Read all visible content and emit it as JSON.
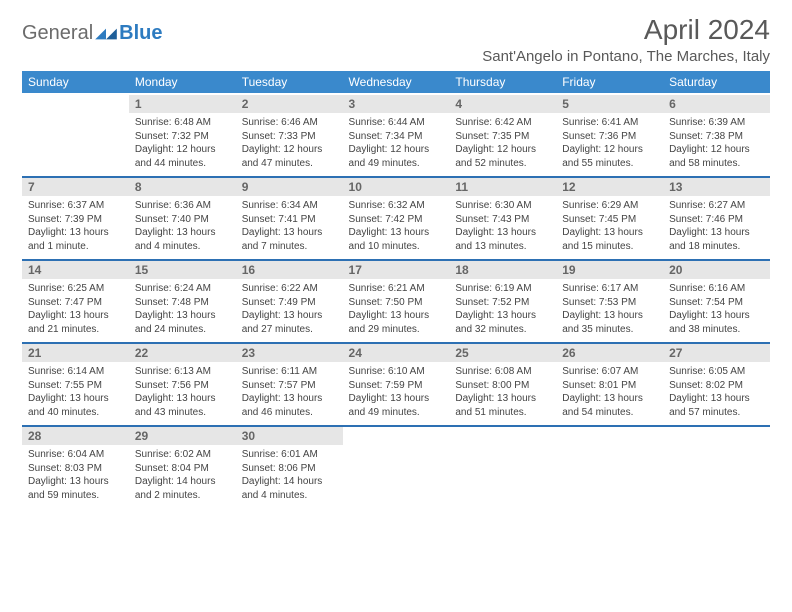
{
  "logo": {
    "general": "General",
    "blue": "Blue"
  },
  "header": {
    "title": "April 2024",
    "location": "Sant'Angelo in Pontano, The Marches, Italy"
  },
  "columns": [
    "Sunday",
    "Monday",
    "Tuesday",
    "Wednesday",
    "Thursday",
    "Friday",
    "Saturday"
  ],
  "weeks": [
    [
      {
        "n": "",
        "sunrise": "",
        "sunset": "",
        "day1": "",
        "day2": ""
      },
      {
        "n": "1",
        "sunrise": "Sunrise: 6:48 AM",
        "sunset": "Sunset: 7:32 PM",
        "day1": "Daylight: 12 hours",
        "day2": "and 44 minutes."
      },
      {
        "n": "2",
        "sunrise": "Sunrise: 6:46 AM",
        "sunset": "Sunset: 7:33 PM",
        "day1": "Daylight: 12 hours",
        "day2": "and 47 minutes."
      },
      {
        "n": "3",
        "sunrise": "Sunrise: 6:44 AM",
        "sunset": "Sunset: 7:34 PM",
        "day1": "Daylight: 12 hours",
        "day2": "and 49 minutes."
      },
      {
        "n": "4",
        "sunrise": "Sunrise: 6:42 AM",
        "sunset": "Sunset: 7:35 PM",
        "day1": "Daylight: 12 hours",
        "day2": "and 52 minutes."
      },
      {
        "n": "5",
        "sunrise": "Sunrise: 6:41 AM",
        "sunset": "Sunset: 7:36 PM",
        "day1": "Daylight: 12 hours",
        "day2": "and 55 minutes."
      },
      {
        "n": "6",
        "sunrise": "Sunrise: 6:39 AM",
        "sunset": "Sunset: 7:38 PM",
        "day1": "Daylight: 12 hours",
        "day2": "and 58 minutes."
      }
    ],
    [
      {
        "n": "7",
        "sunrise": "Sunrise: 6:37 AM",
        "sunset": "Sunset: 7:39 PM",
        "day1": "Daylight: 13 hours",
        "day2": "and 1 minute."
      },
      {
        "n": "8",
        "sunrise": "Sunrise: 6:36 AM",
        "sunset": "Sunset: 7:40 PM",
        "day1": "Daylight: 13 hours",
        "day2": "and 4 minutes."
      },
      {
        "n": "9",
        "sunrise": "Sunrise: 6:34 AM",
        "sunset": "Sunset: 7:41 PM",
        "day1": "Daylight: 13 hours",
        "day2": "and 7 minutes."
      },
      {
        "n": "10",
        "sunrise": "Sunrise: 6:32 AM",
        "sunset": "Sunset: 7:42 PM",
        "day1": "Daylight: 13 hours",
        "day2": "and 10 minutes."
      },
      {
        "n": "11",
        "sunrise": "Sunrise: 6:30 AM",
        "sunset": "Sunset: 7:43 PM",
        "day1": "Daylight: 13 hours",
        "day2": "and 13 minutes."
      },
      {
        "n": "12",
        "sunrise": "Sunrise: 6:29 AM",
        "sunset": "Sunset: 7:45 PM",
        "day1": "Daylight: 13 hours",
        "day2": "and 15 minutes."
      },
      {
        "n": "13",
        "sunrise": "Sunrise: 6:27 AM",
        "sunset": "Sunset: 7:46 PM",
        "day1": "Daylight: 13 hours",
        "day2": "and 18 minutes."
      }
    ],
    [
      {
        "n": "14",
        "sunrise": "Sunrise: 6:25 AM",
        "sunset": "Sunset: 7:47 PM",
        "day1": "Daylight: 13 hours",
        "day2": "and 21 minutes."
      },
      {
        "n": "15",
        "sunrise": "Sunrise: 6:24 AM",
        "sunset": "Sunset: 7:48 PM",
        "day1": "Daylight: 13 hours",
        "day2": "and 24 minutes."
      },
      {
        "n": "16",
        "sunrise": "Sunrise: 6:22 AM",
        "sunset": "Sunset: 7:49 PM",
        "day1": "Daylight: 13 hours",
        "day2": "and 27 minutes."
      },
      {
        "n": "17",
        "sunrise": "Sunrise: 6:21 AM",
        "sunset": "Sunset: 7:50 PM",
        "day1": "Daylight: 13 hours",
        "day2": "and 29 minutes."
      },
      {
        "n": "18",
        "sunrise": "Sunrise: 6:19 AM",
        "sunset": "Sunset: 7:52 PM",
        "day1": "Daylight: 13 hours",
        "day2": "and 32 minutes."
      },
      {
        "n": "19",
        "sunrise": "Sunrise: 6:17 AM",
        "sunset": "Sunset: 7:53 PM",
        "day1": "Daylight: 13 hours",
        "day2": "and 35 minutes."
      },
      {
        "n": "20",
        "sunrise": "Sunrise: 6:16 AM",
        "sunset": "Sunset: 7:54 PM",
        "day1": "Daylight: 13 hours",
        "day2": "and 38 minutes."
      }
    ],
    [
      {
        "n": "21",
        "sunrise": "Sunrise: 6:14 AM",
        "sunset": "Sunset: 7:55 PM",
        "day1": "Daylight: 13 hours",
        "day2": "and 40 minutes."
      },
      {
        "n": "22",
        "sunrise": "Sunrise: 6:13 AM",
        "sunset": "Sunset: 7:56 PM",
        "day1": "Daylight: 13 hours",
        "day2": "and 43 minutes."
      },
      {
        "n": "23",
        "sunrise": "Sunrise: 6:11 AM",
        "sunset": "Sunset: 7:57 PM",
        "day1": "Daylight: 13 hours",
        "day2": "and 46 minutes."
      },
      {
        "n": "24",
        "sunrise": "Sunrise: 6:10 AM",
        "sunset": "Sunset: 7:59 PM",
        "day1": "Daylight: 13 hours",
        "day2": "and 49 minutes."
      },
      {
        "n": "25",
        "sunrise": "Sunrise: 6:08 AM",
        "sunset": "Sunset: 8:00 PM",
        "day1": "Daylight: 13 hours",
        "day2": "and 51 minutes."
      },
      {
        "n": "26",
        "sunrise": "Sunrise: 6:07 AM",
        "sunset": "Sunset: 8:01 PM",
        "day1": "Daylight: 13 hours",
        "day2": "and 54 minutes."
      },
      {
        "n": "27",
        "sunrise": "Sunrise: 6:05 AM",
        "sunset": "Sunset: 8:02 PM",
        "day1": "Daylight: 13 hours",
        "day2": "and 57 minutes."
      }
    ],
    [
      {
        "n": "28",
        "sunrise": "Sunrise: 6:04 AM",
        "sunset": "Sunset: 8:03 PM",
        "day1": "Daylight: 13 hours",
        "day2": "and 59 minutes."
      },
      {
        "n": "29",
        "sunrise": "Sunrise: 6:02 AM",
        "sunset": "Sunset: 8:04 PM",
        "day1": "Daylight: 14 hours",
        "day2": "and 2 minutes."
      },
      {
        "n": "30",
        "sunrise": "Sunrise: 6:01 AM",
        "sunset": "Sunset: 8:06 PM",
        "day1": "Daylight: 14 hours",
        "day2": "and 4 minutes."
      },
      {
        "n": "",
        "sunrise": "",
        "sunset": "",
        "day1": "",
        "day2": ""
      },
      {
        "n": "",
        "sunrise": "",
        "sunset": "",
        "day1": "",
        "day2": ""
      },
      {
        "n": "",
        "sunrise": "",
        "sunset": "",
        "day1": "",
        "day2": ""
      },
      {
        "n": "",
        "sunrise": "",
        "sunset": "",
        "day1": "",
        "day2": ""
      }
    ]
  ],
  "style": {
    "header_bg": "#3a89cc",
    "rule_color": "#2d70b3",
    "daynum_bg": "#e6e6e6",
    "col_count": 7
  }
}
